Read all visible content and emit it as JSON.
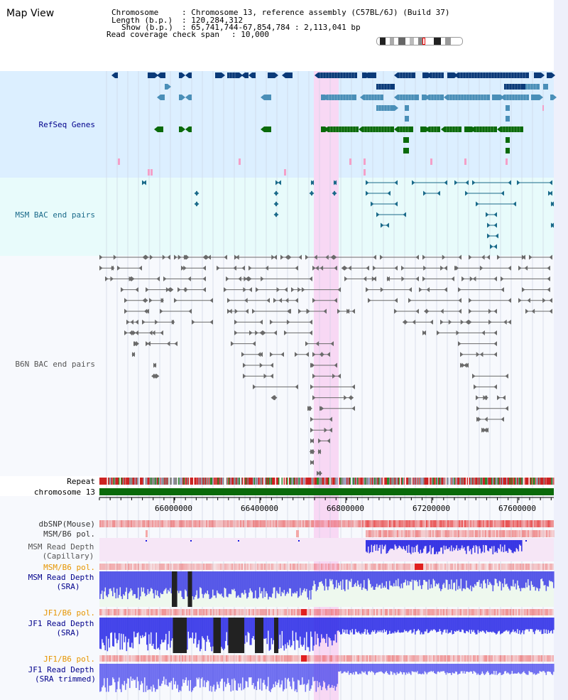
{
  "app": {
    "title": "Map View"
  },
  "header": {
    "chromosome_key": "Chromosome",
    "chromosome_val": ": Chromosome 13, reference assembly (C57BL/6J) (Build 37)",
    "length_key": "Length (b.p.)",
    "length_val": ": 120,284,312",
    "show_key": "Show (b.p.)",
    "show_val": ": 65,741,744-67,854,784 : 2,113,041 bp",
    "coverage_key": "Read coverage check span",
    "coverage_val": ": 10,000"
  },
  "tracks": {
    "refseq": "RefSeq Genes",
    "msm_bac": "MSM BAC end pairs",
    "b6n_bac": "B6N BAC end pairs",
    "repeat": "Repeat",
    "chromosome": "chromosome 13",
    "dbsnp": "dbSNP(Mouse)",
    "msm_pol1": "MSM/B6 pol.",
    "msm_depth_cap_1": "MSM Read Depth",
    "msm_depth_cap_2": "(Capillary)",
    "msm_pol2": "MSM/B6 pol.",
    "msm_depth_sra_1": "MSM Read Depth",
    "msm_depth_sra_2": "(SRA)",
    "jf1_pol1": "JF1/B6 pol.",
    "jf1_depth_sra_1": "JF1 Read Depth",
    "jf1_depth_sra_2": "(SRA)",
    "jf1_pol2": "JF1/B6 pol.",
    "jf1_depth_trim_1": "JF1 Read Depth",
    "jf1_depth_trim_2": "(SRA trimmed)"
  },
  "axis": {
    "ticks": [
      "66000000",
      "66400000",
      "66800000",
      "67200000",
      "67600000"
    ]
  },
  "colors": {
    "refseq_bg": "#dcefff",
    "msm_bg": "#e8fbfb",
    "highlight": "#f8d8f4",
    "gene_dark": "#0a3a78",
    "gene_mid": "#4a8fb8",
    "gene_green": "#0a6a0a",
    "gene_pink": "#f4a0c8",
    "msm_pair": "#1a6a8a",
    "b6n_pair": "#6a6a6a",
    "chrom_bar": "#0a6a0a",
    "depth_blue": "#1a1ae0",
    "depth_dark": "#222222",
    "label_blue": "#00008b",
    "label_orange": "#e69500",
    "label_teal": "#1a6a8a"
  }
}
